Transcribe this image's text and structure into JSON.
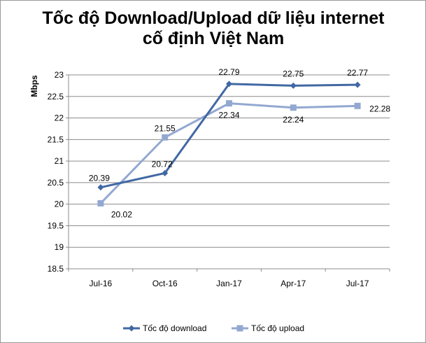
{
  "chart_data": {
    "type": "line",
    "title_lines": [
      "Tốc độ Download/Upload dữ liệu internet",
      "cố định Việt Nam"
    ],
    "ylabel": "Mbps",
    "xlabel": "",
    "categories": [
      "Jul-16",
      "Oct-16",
      "Jan-17",
      "Apr-17",
      "Jul-17"
    ],
    "ylim": [
      18.5,
      23
    ],
    "yticks": [
      18.5,
      19,
      19.5,
      20,
      20.5,
      21,
      21.5,
      22,
      22.5,
      23
    ],
    "grid": "horizontal",
    "legend_position": "bottom",
    "series": [
      {
        "name": "Tốc độ download",
        "values": [
          20.39,
          20.72,
          22.79,
          22.75,
          22.77
        ],
        "labels": [
          "20.39",
          "20.72",
          "22.79",
          "22.75",
          "22.77"
        ],
        "color": "#4168a3",
        "marker": "diamond"
      },
      {
        "name": "Tốc độ upload",
        "values": [
          20.02,
          21.55,
          22.34,
          22.24,
          22.28
        ],
        "labels": [
          "20.02",
          "21.55",
          "22.34",
          "22.24",
          "22.28"
        ],
        "color": "#93a8d1",
        "marker": "square"
      }
    ]
  }
}
